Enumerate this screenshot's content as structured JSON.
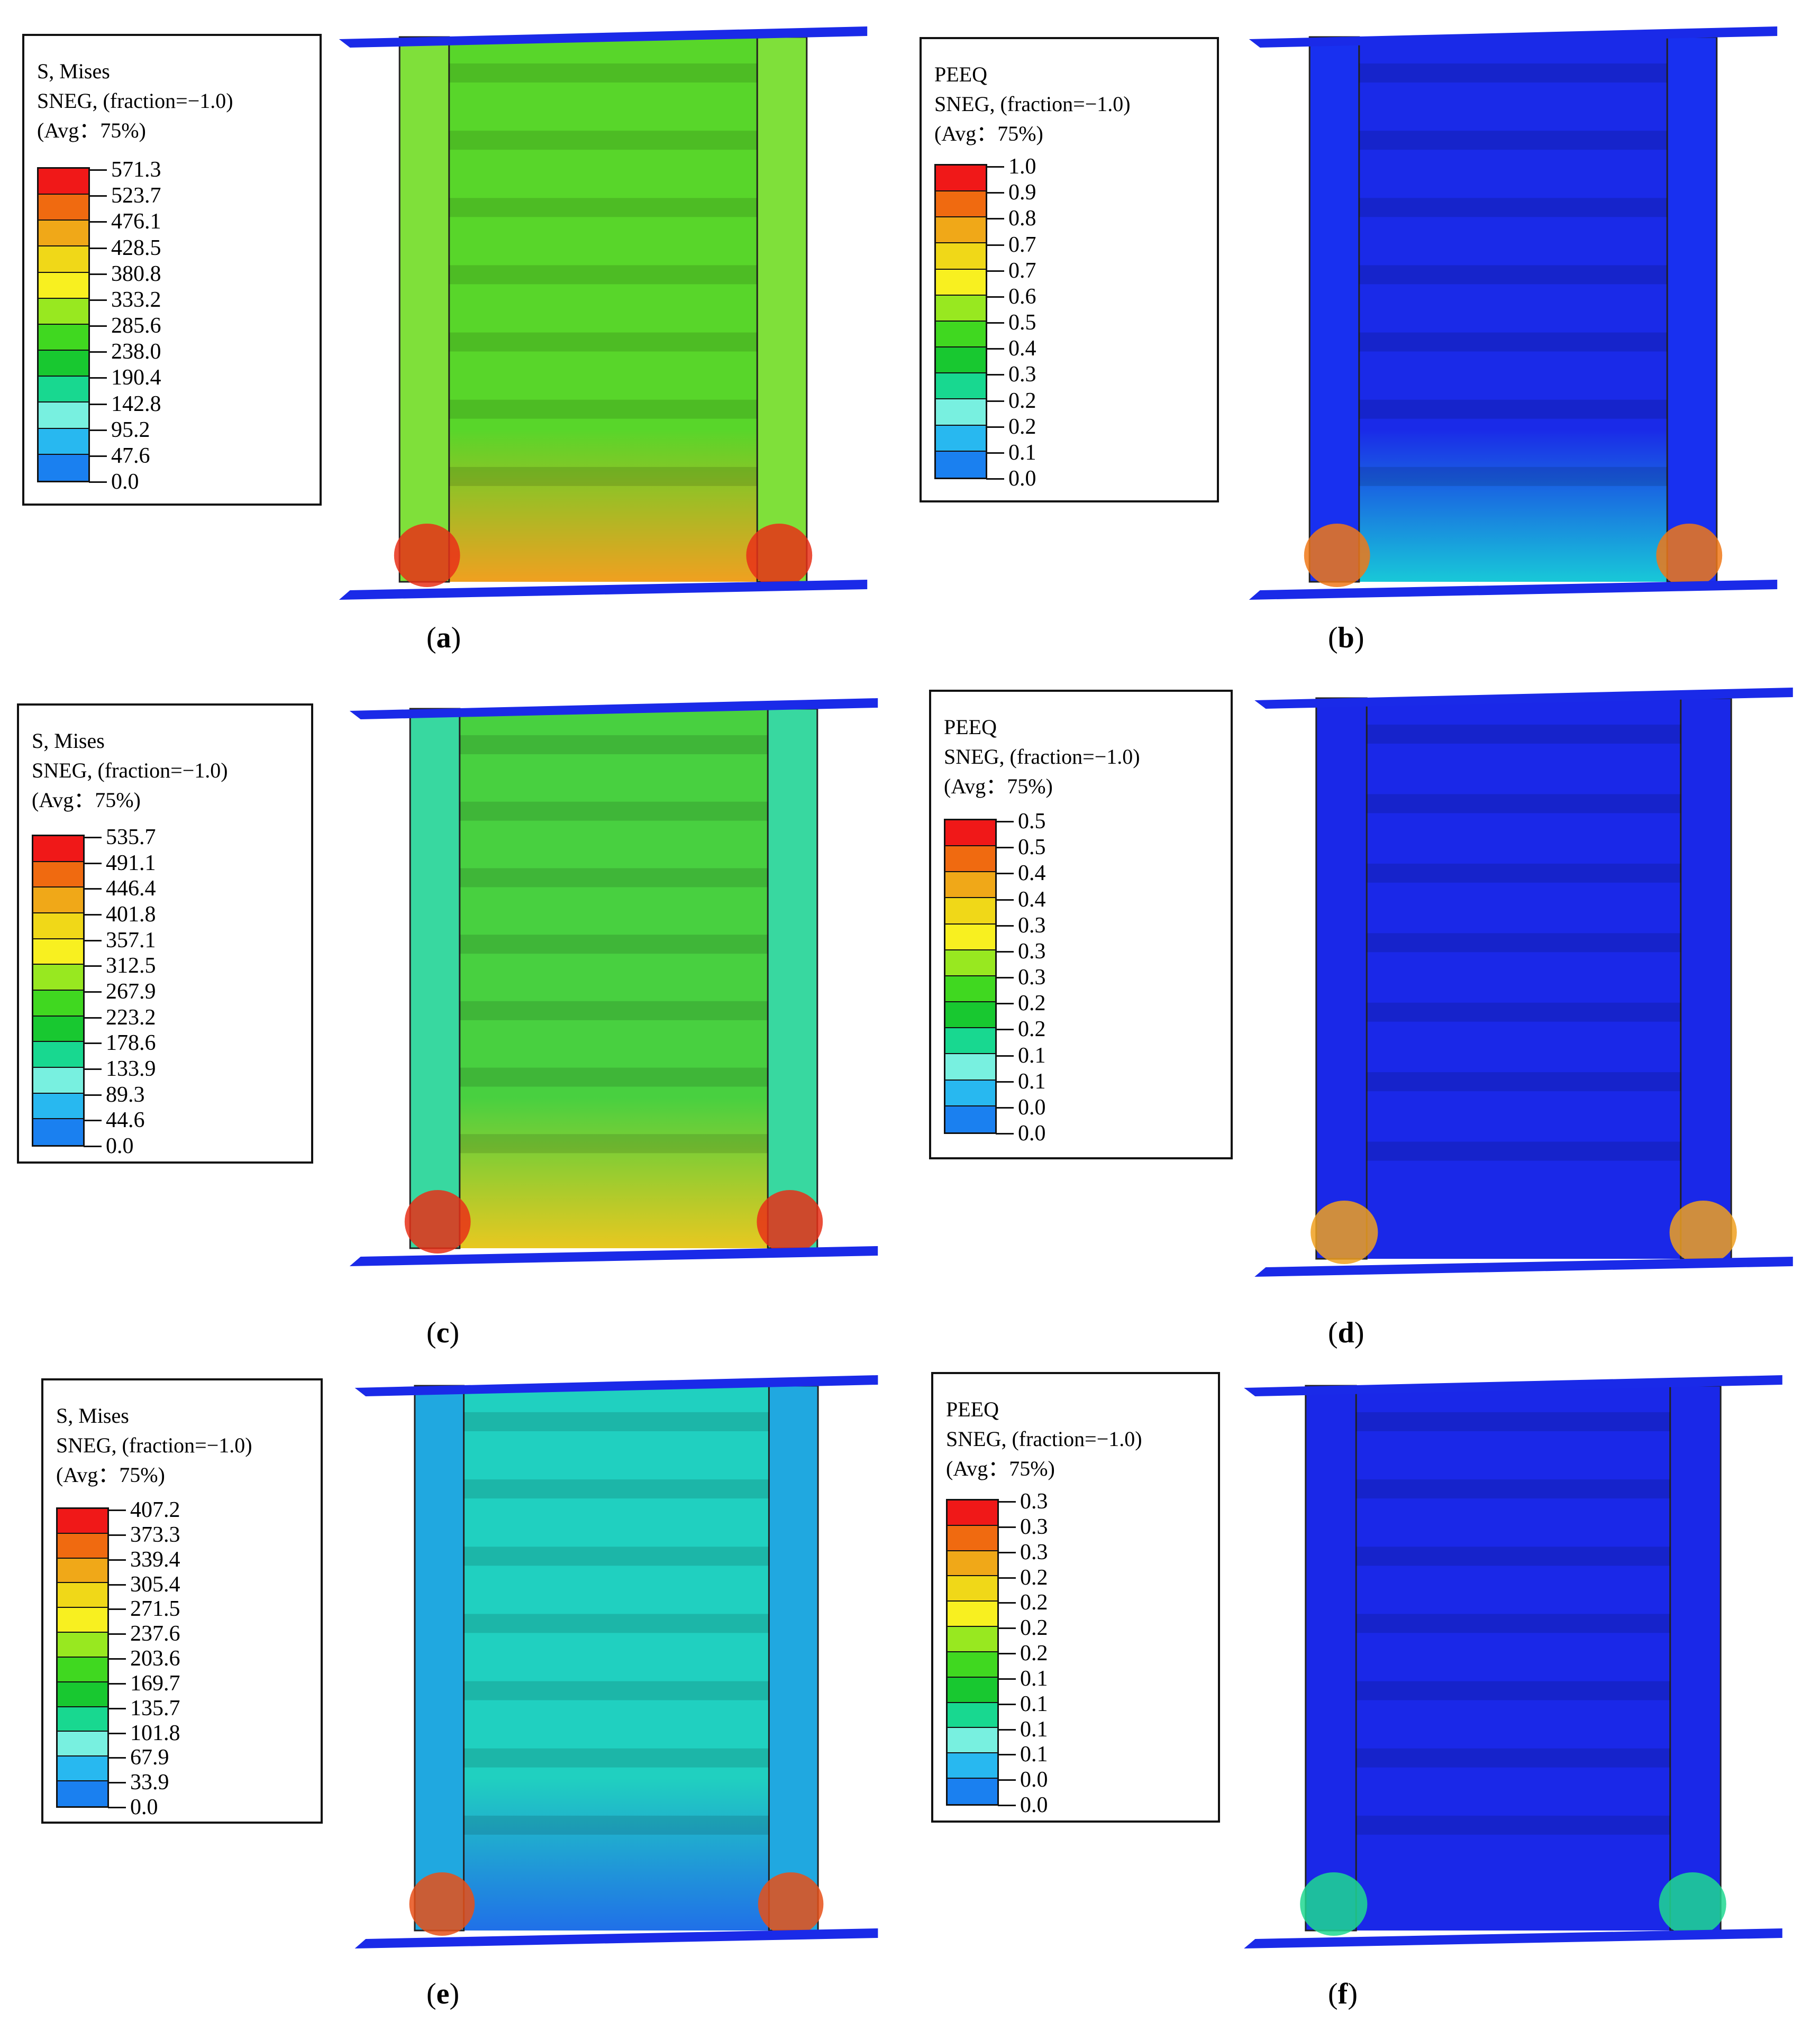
{
  "panels": [
    {
      "id": "a",
      "caption_letter": "a",
      "title": "S, Mises",
      "subtitle": "SNEG, (fraction=−1.0)",
      "avg": "(Avg：75%)",
      "values": [
        "571.3",
        "523.7",
        "476.1",
        "428.5",
        "380.8",
        "333.2",
        "285.6",
        "238.0",
        "190.4",
        "142.8",
        "95.2",
        "47.6",
        "0.0"
      ],
      "body_color": "#58d62a",
      "side_color": "#7fe03a",
      "base_color": "#f0a020",
      "hot_color": "#e83018"
    },
    {
      "id": "b",
      "caption_letter": "b",
      "title": "PEEQ",
      "subtitle": "SNEG, (fraction=−1.0)",
      "avg": "(Avg：75%)",
      "values": [
        "1.0",
        "0.9",
        "0.8",
        "0.7",
        "0.7",
        "0.6",
        "0.5",
        "0.4",
        "0.3",
        "0.2",
        "0.2",
        "0.1",
        "0.0"
      ],
      "body_color": "#1a2ae8",
      "side_color": "#1830f0",
      "base_color": "#18c8d8",
      "hot_color": "#f07818"
    },
    {
      "id": "c",
      "caption_letter": "c",
      "title": "S, Mises",
      "subtitle": "SNEG, (fraction=−1.0)",
      "avg": "(Avg：75%)",
      "values": [
        "535.7",
        "491.1",
        "446.4",
        "401.8",
        "357.1",
        "312.5",
        "267.9",
        "223.2",
        "178.6",
        "133.9",
        "89.3",
        "44.6",
        "0.0"
      ],
      "body_color": "#48d040",
      "side_color": "#38d8a0",
      "base_color": "#e8c820",
      "hot_color": "#e83018"
    },
    {
      "id": "d",
      "caption_letter": "d",
      "title": "PEEQ",
      "subtitle": "SNEG, (fraction=−1.0)",
      "avg": "(Avg：75%)",
      "values": [
        "0.5",
        "0.5",
        "0.4",
        "0.4",
        "0.3",
        "0.3",
        "0.3",
        "0.2",
        "0.2",
        "0.1",
        "0.1",
        "0.0",
        "0.0"
      ],
      "body_color": "#1a28e8",
      "side_color": "#1a28e8",
      "base_color": "#1a28e8",
      "hot_color": "#f0a020"
    },
    {
      "id": "e",
      "caption_letter": "e",
      "title": "S, Mises",
      "subtitle": "SNEG, (fraction=−1.0)",
      "avg": "(Avg：75%)",
      "values": [
        "407.2",
        "373.3",
        "339.4",
        "305.4",
        "271.5",
        "237.6",
        "203.6",
        "169.7",
        "135.7",
        "101.8",
        "67.9",
        "33.9",
        "0.0"
      ],
      "body_color": "#20d0c0",
      "side_color": "#20a8e0",
      "base_color": "#2070e8",
      "hot_color": "#e85018"
    },
    {
      "id": "f",
      "caption_letter": "f",
      "title": "PEEQ",
      "subtitle": "SNEG, (fraction=−1.0)",
      "avg": "(Avg：75%)",
      "values": [
        "0.3",
        "0.3",
        "0.3",
        "0.2",
        "0.2",
        "0.2",
        "0.2",
        "0.1",
        "0.1",
        "0.1",
        "0.1",
        "0.0",
        "0.0"
      ],
      "body_color": "#1a28e8",
      "side_color": "#1a28e8",
      "base_color": "#1a28e8",
      "hot_color": "#20d890"
    }
  ],
  "colormap": [
    "#f01818",
    "#f06a10",
    "#f0a818",
    "#f0d818",
    "#f8f020",
    "#98e820",
    "#40d820",
    "#18c830",
    "#18d890",
    "#78f0e0",
    "#28b8f0",
    "#1a80f0",
    "#1a20e8"
  ]
}
